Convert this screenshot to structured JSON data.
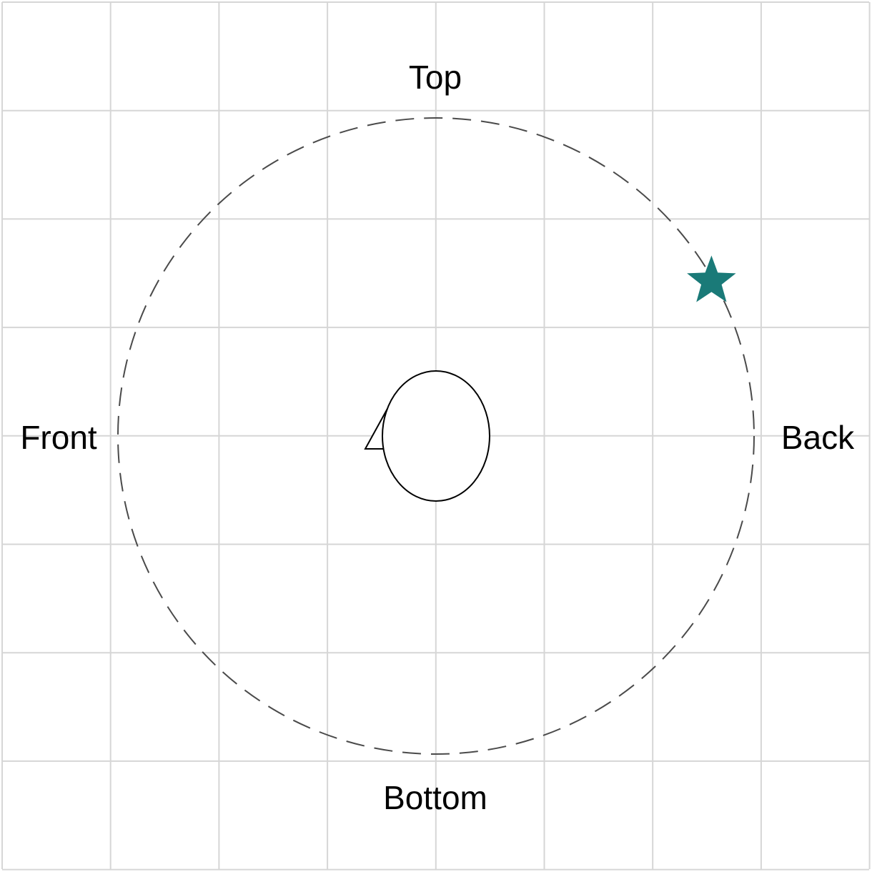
{
  "labels": {
    "top": "Top",
    "bottom": "Bottom",
    "front": "Front",
    "back": "Back"
  },
  "marker": {
    "icon": "star-icon",
    "color": "#1a7a78",
    "angle_deg": 60
  },
  "orbit": {
    "style": "dashed"
  },
  "grid": {
    "visible": true
  }
}
